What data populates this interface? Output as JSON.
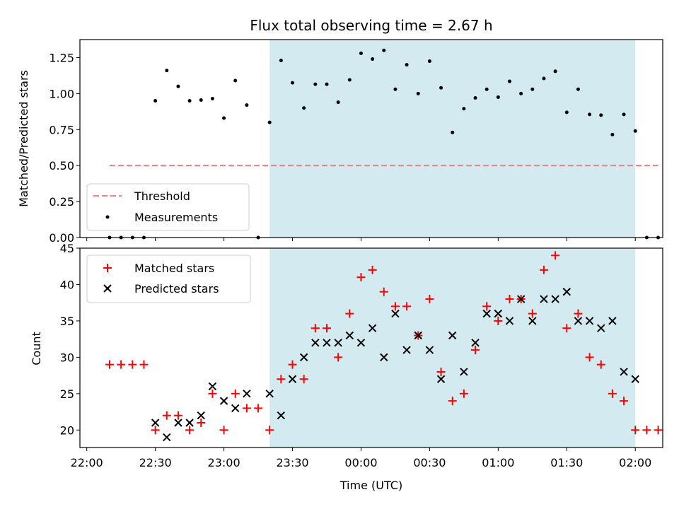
{
  "chart_data": [
    {
      "type": "scatter",
      "title": "Flux total observing time = 2.67 h",
      "ylabel": "Matched/Predicted stars",
      "xlabel": "",
      "ylim": [
        0,
        1.375
      ],
      "xlim": [
        "21:57",
        "02:12"
      ],
      "x_ticks": [
        "22:00",
        "22:30",
        "23:00",
        "23:30",
        "00:00",
        "00:30",
        "01:00",
        "01:30",
        "02:00"
      ],
      "y_ticks": [
        "0.00",
        "0.25",
        "0.50",
        "0.75",
        "1.00",
        "1.25"
      ],
      "legend_position": "lower-left",
      "shaded_region": {
        "start": "23:20",
        "end": "02:00",
        "color": "#d4eaf1"
      },
      "threshold": {
        "name": "Threshold",
        "y": 0.5,
        "x_start": "22:10",
        "x_end": "02:10",
        "color": "#f08080",
        "style": "dashed"
      },
      "series": [
        {
          "name": "Measurements",
          "marker": "dot",
          "color": "#000000",
          "x": [
            "22:10",
            "22:15",
            "22:20",
            "22:25",
            "22:30",
            "22:35",
            "22:40",
            "22:45",
            "22:50",
            "22:55",
            "23:00",
            "23:05",
            "23:10",
            "23:15",
            "23:20",
            "23:25",
            "23:30",
            "23:35",
            "23:40",
            "23:45",
            "23:50",
            "23:55",
            "00:00",
            "00:05",
            "00:10",
            "00:15",
            "00:20",
            "00:25",
            "00:30",
            "00:35",
            "00:40",
            "00:45",
            "00:50",
            "00:55",
            "01:00",
            "01:05",
            "01:10",
            "01:15",
            "01:20",
            "01:25",
            "01:30",
            "01:35",
            "01:40",
            "01:45",
            "01:50",
            "01:55",
            "02:00",
            "02:05",
            "02:10"
          ],
          "y": [
            0,
            0,
            0,
            0,
            0.95,
            1.16,
            1.05,
            0.95,
            0.955,
            0.965,
            0.83,
            1.09,
            0.92,
            0,
            0.8,
            1.23,
            1.075,
            0.9,
            1.065,
            1.065,
            0.94,
            1.095,
            1.28,
            1.24,
            1.3,
            1.03,
            1.2,
            1.0,
            1.225,
            1.04,
            0.73,
            0.895,
            0.97,
            1.03,
            0.975,
            1.085,
            1.0,
            1.03,
            1.105,
            1.155,
            0.87,
            1.03,
            0.855,
            0.85,
            0.715,
            0.855,
            0.74,
            0,
            0
          ]
        }
      ]
    },
    {
      "type": "scatter",
      "title": "",
      "ylabel": "Count",
      "xlabel": "Time (UTC)",
      "ylim": [
        17.6,
        45
      ],
      "xlim": [
        "21:57",
        "02:12"
      ],
      "x_ticks": [
        "22:00",
        "22:30",
        "23:00",
        "23:30",
        "00:00",
        "00:30",
        "01:00",
        "01:30",
        "02:00"
      ],
      "y_ticks": [
        "20",
        "25",
        "30",
        "35",
        "40",
        "45"
      ],
      "legend_position": "upper-left",
      "shaded_region": {
        "start": "23:20",
        "end": "02:00",
        "color": "#d4eaf1"
      },
      "series": [
        {
          "name": "Matched stars",
          "marker": "plus",
          "color": "#ff0000",
          "x": [
            "22:10",
            "22:15",
            "22:20",
            "22:25",
            "22:30",
            "22:35",
            "22:40",
            "22:45",
            "22:50",
            "22:55",
            "23:00",
            "23:05",
            "23:10",
            "23:15",
            "23:20",
            "23:25",
            "23:30",
            "23:35",
            "23:40",
            "23:45",
            "23:50",
            "23:55",
            "00:00",
            "00:05",
            "00:10",
            "00:15",
            "00:20",
            "00:25",
            "00:30",
            "00:35",
            "00:40",
            "00:45",
            "00:50",
            "00:55",
            "01:00",
            "01:05",
            "01:10",
            "01:15",
            "01:20",
            "01:25",
            "01:30",
            "01:35",
            "01:40",
            "01:45",
            "01:50",
            "01:55",
            "02:00",
            "02:05",
            "02:10"
          ],
          "y": [
            29,
            29,
            29,
            29,
            20,
            22,
            22,
            20,
            21,
            25,
            20,
            25,
            23,
            23,
            20,
            27,
            29,
            27,
            34,
            34,
            30,
            36,
            41,
            42,
            39,
            37,
            37,
            33,
            38,
            28,
            24,
            25,
            31,
            37,
            35,
            38,
            38,
            36,
            42,
            44,
            34,
            36,
            30,
            29,
            25,
            24,
            20,
            20,
            20
          ]
        },
        {
          "name": "Predicted stars",
          "marker": "x",
          "color": "#000000",
          "x": [
            "22:30",
            "22:35",
            "22:40",
            "22:45",
            "22:50",
            "22:55",
            "23:00",
            "23:05",
            "23:10",
            "23:20",
            "23:25",
            "23:30",
            "23:35",
            "23:40",
            "23:45",
            "23:50",
            "23:55",
            "00:00",
            "00:05",
            "00:10",
            "00:15",
            "00:20",
            "00:25",
            "00:30",
            "00:35",
            "00:40",
            "00:45",
            "00:50",
            "00:55",
            "01:00",
            "01:05",
            "01:10",
            "01:15",
            "01:20",
            "01:25",
            "01:30",
            "01:35",
            "01:40",
            "01:45",
            "01:50",
            "01:55",
            "02:00"
          ],
          "y": [
            21,
            19,
            21,
            21,
            22,
            26,
            24,
            23,
            25,
            25,
            22,
            27,
            30,
            32,
            32,
            32,
            33,
            32,
            34,
            30,
            36,
            31,
            33,
            31,
            27,
            33,
            28,
            32,
            36,
            36,
            35,
            38,
            35,
            38,
            38,
            39,
            35,
            35,
            34,
            35,
            28,
            27
          ]
        }
      ]
    }
  ]
}
